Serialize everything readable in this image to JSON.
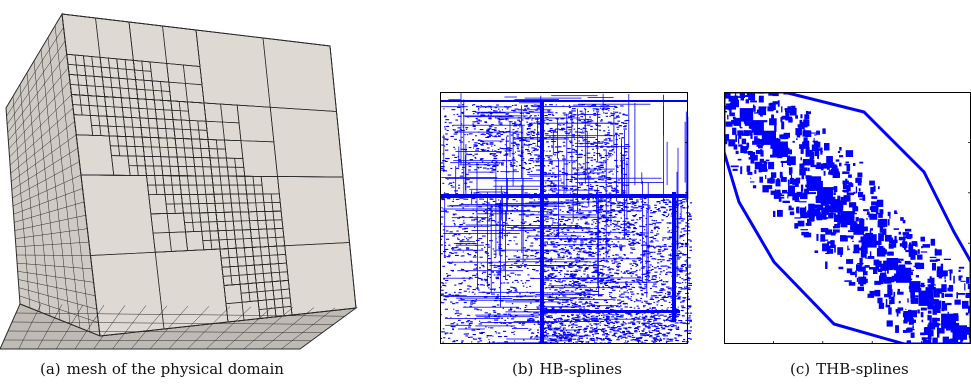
{
  "figure": {
    "panels": [
      {
        "label": "(a)",
        "caption": "mesh of the physical domain"
      },
      {
        "label": "(b)",
        "caption": "HB-splines"
      },
      {
        "label": "(c)",
        "caption": "THB-splines"
      }
    ],
    "colors": {
      "mesh_face": "#dedad3",
      "mesh_face_side": "#cfcbc4",
      "mesh_line": "#2b2b2b",
      "sparsity": "#0000ff",
      "frame": "#000000"
    }
  }
}
